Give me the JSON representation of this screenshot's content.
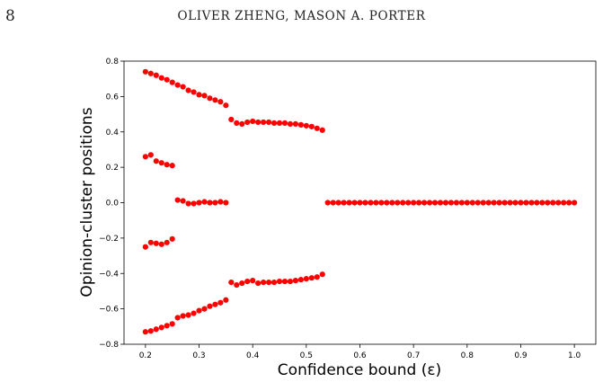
{
  "header": {
    "page_number": "8",
    "running_head": "OLIVER ZHENG, MASON A. PORTER"
  },
  "chart_data": {
    "type": "scatter",
    "xlabel": "Confidence bound (ε)",
    "ylabel": "Opinion-cluster positions",
    "xlim": [
      0.16,
      1.04
    ],
    "ylim": [
      -0.8,
      0.8
    ],
    "xticks": [
      "0.2",
      "0.3",
      "0.4",
      "0.5",
      "0.6",
      "0.7",
      "0.8",
      "0.9",
      "1.0"
    ],
    "yticks": [
      "−0.8",
      "−0.6",
      "−0.4",
      "−0.2",
      "0.0",
      "0.2",
      "0.4",
      "0.6",
      "0.8"
    ],
    "xtick_values": [
      0.2,
      0.3,
      0.4,
      0.5,
      0.6,
      0.7,
      0.8,
      0.9,
      1.0
    ],
    "ytick_values": [
      -0.8,
      -0.6,
      -0.4,
      -0.2,
      0.0,
      0.2,
      0.4,
      0.6,
      0.8
    ],
    "marker_color": "#ff0000",
    "grid": false,
    "series": [
      {
        "x": [
          0.2,
          0.21,
          0.22,
          0.23,
          0.24,
          0.25,
          0.26,
          0.27,
          0.28,
          0.29,
          0.3,
          0.31,
          0.32,
          0.33,
          0.34,
          0.35,
          0.36,
          0.37,
          0.38,
          0.39,
          0.4,
          0.41,
          0.42,
          0.43,
          0.44,
          0.45,
          0.46,
          0.47,
          0.48,
          0.49,
          0.5,
          0.51,
          0.52,
          0.53
        ],
        "y": [
          0.74,
          0.73,
          0.72,
          0.705,
          0.695,
          0.68,
          0.665,
          0.655,
          0.635,
          0.625,
          0.61,
          0.605,
          0.59,
          0.58,
          0.57,
          0.55,
          0.47,
          0.45,
          0.445,
          0.455,
          0.46,
          0.455,
          0.455,
          0.455,
          0.45,
          0.45,
          0.45,
          0.445,
          0.445,
          0.44,
          0.435,
          0.43,
          0.42,
          0.41
        ]
      },
      {
        "x": [
          0.2,
          0.21,
          0.22,
          0.23,
          0.24,
          0.25
        ],
        "y": [
          0.26,
          0.27,
          0.235,
          0.225,
          0.215,
          0.21
        ]
      },
      {
        "x": [
          0.26,
          0.27,
          0.28,
          0.29,
          0.3,
          0.31,
          0.32,
          0.33,
          0.34,
          0.35,
          0.54,
          0.55,
          0.56,
          0.57,
          0.58,
          0.59,
          0.6,
          0.61,
          0.62,
          0.63,
          0.64,
          0.65,
          0.66,
          0.67,
          0.68,
          0.69,
          0.7,
          0.71,
          0.72,
          0.73,
          0.74,
          0.75,
          0.76,
          0.77,
          0.78,
          0.79,
          0.8,
          0.81,
          0.82,
          0.83,
          0.84,
          0.85,
          0.86,
          0.87,
          0.88,
          0.89,
          0.9,
          0.91,
          0.92,
          0.93,
          0.94,
          0.95,
          0.96,
          0.97,
          0.98,
          0.99,
          1.0
        ],
        "y": [
          0.015,
          0.01,
          -0.005,
          -0.005,
          0.0,
          0.005,
          0.0,
          0.0,
          0.005,
          0.0,
          0,
          0,
          0,
          0,
          0,
          0,
          0,
          0,
          0,
          0,
          0,
          0,
          0,
          0,
          0,
          0,
          0,
          0,
          0,
          0,
          0,
          0,
          0,
          0,
          0,
          0,
          0,
          0,
          0,
          0,
          0,
          0,
          0,
          0,
          0,
          0,
          0,
          0,
          0,
          0,
          0,
          0,
          0,
          0,
          0,
          0,
          0
        ]
      },
      {
        "x": [
          0.2,
          0.21,
          0.22,
          0.23,
          0.24,
          0.25
        ],
        "y": [
          -0.25,
          -0.225,
          -0.23,
          -0.235,
          -0.225,
          -0.205
        ]
      },
      {
        "x": [
          0.2,
          0.21,
          0.22,
          0.23,
          0.24,
          0.25,
          0.26,
          0.27,
          0.28,
          0.29,
          0.3,
          0.31,
          0.32,
          0.33,
          0.34,
          0.35,
          0.36,
          0.37,
          0.38,
          0.39,
          0.4,
          0.41,
          0.42,
          0.43,
          0.44,
          0.45,
          0.46,
          0.47,
          0.48,
          0.49,
          0.5,
          0.51,
          0.52,
          0.53
        ],
        "y": [
          -0.73,
          -0.725,
          -0.715,
          -0.705,
          -0.695,
          -0.685,
          -0.65,
          -0.64,
          -0.635,
          -0.625,
          -0.61,
          -0.6,
          -0.585,
          -0.575,
          -0.565,
          -0.55,
          -0.45,
          -0.465,
          -0.455,
          -0.445,
          -0.44,
          -0.455,
          -0.45,
          -0.45,
          -0.45,
          -0.445,
          -0.445,
          -0.445,
          -0.44,
          -0.435,
          -0.43,
          -0.425,
          -0.42,
          -0.405
        ]
      }
    ]
  }
}
